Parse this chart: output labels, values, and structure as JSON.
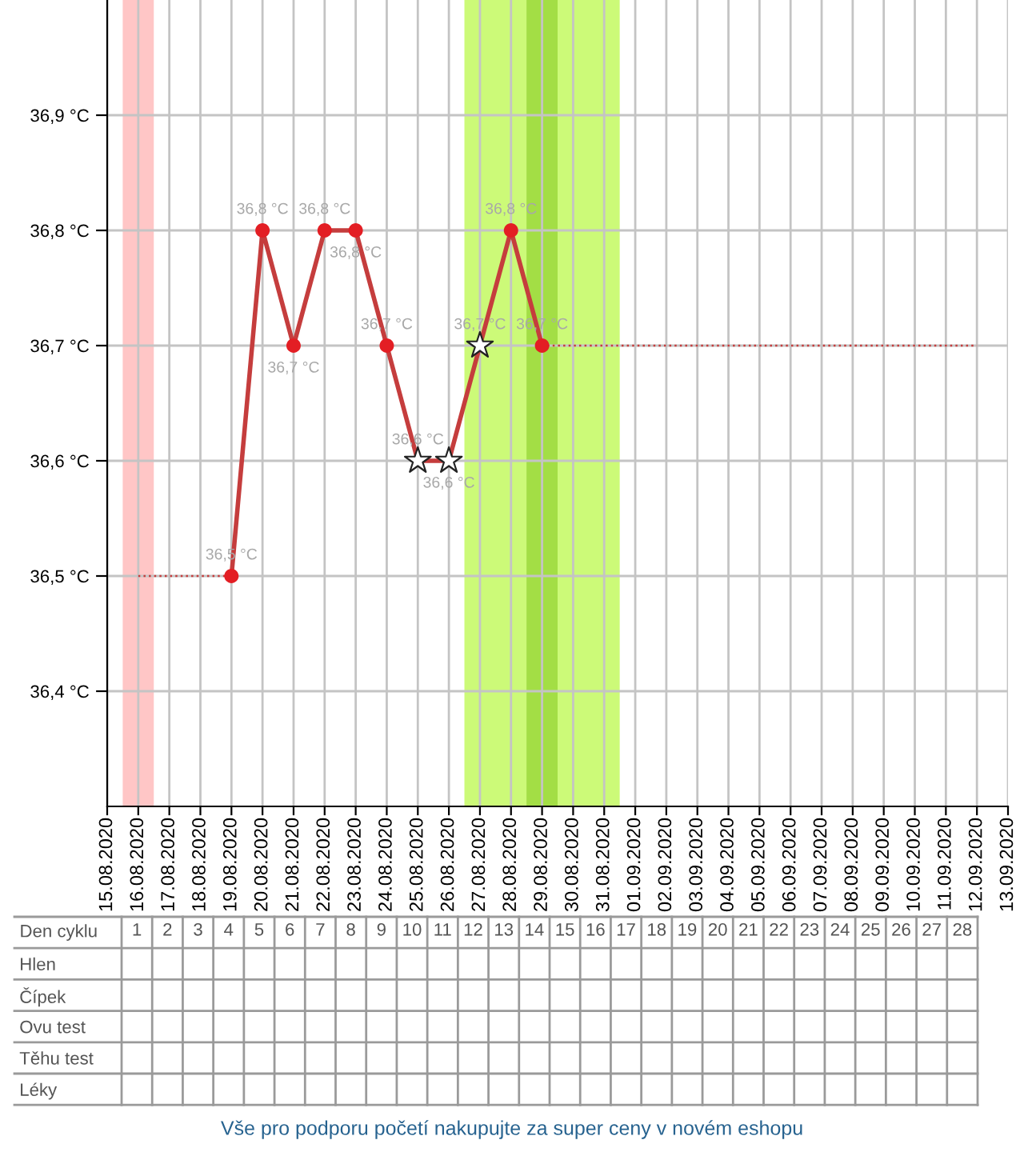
{
  "chart_data": [
    {
      "type": "line",
      "x": [
        "2020-08-19",
        "2020-08-20",
        "2020-08-21",
        "2020-08-22",
        "2020-08-23",
        "2020-08-24",
        "2020-08-25",
        "2020-08-26",
        "2020-08-27",
        "2020-08-28",
        "2020-08-29"
      ],
      "series": [
        {
          "type": "line",
          "color": "#c53d3d",
          "marker": "none",
          "line_style": "solid",
          "values": [
            36.5,
            36.8,
            36.7,
            36.8,
            36.8,
            36.7,
            36.6,
            36.6,
            36.7,
            36.8,
            36.7
          ],
          "value_labels": [
            "36,5 °C",
            "36,8 °C",
            "36,7 °C",
            "36,8 °C",
            "36,8 °C",
            "36,7 °C",
            "36,6 °C",
            "36,6 °C",
            "36,7 °C",
            "36,8 °C",
            "36,7 °C"
          ]
        },
        {
          "type": "scatter",
          "color": "#e31e24",
          "marker": "circle",
          "values": [
            36.5,
            36.8,
            36.7,
            36.8,
            36.8,
            36.7,
            null,
            null,
            null,
            36.8,
            36.7
          ]
        },
        {
          "type": "scatter",
          "color": "#ffffff",
          "marker": "star",
          "values": [
            null,
            null,
            null,
            null,
            null,
            null,
            36.6,
            36.6,
            36.7,
            null,
            null
          ]
        },
        {
          "type": "line",
          "color": "#c53d3d",
          "marker": "none",
          "line_style": "dotted",
          "x": [
            "2020-08-16",
            "2020-08-19"
          ],
          "values": [
            36.5,
            36.5
          ]
        },
        {
          "type": "line",
          "color": "#c53d3d",
          "marker": "none",
          "line_style": "dotted",
          "x": [
            "2020-08-29",
            "2020-09-12"
          ],
          "values": [
            36.7,
            36.7
          ]
        }
      ],
      "bands": [
        {
          "axis": "x",
          "from": "2020-08-15T12:00",
          "to": "2020-08-16T12:00",
          "color": "#ffc6c6"
        },
        {
          "axis": "x",
          "from": "2020-08-26T12:00",
          "to": "2020-08-31T12:00",
          "color": "#ccfa78"
        },
        {
          "axis": "x",
          "from": "2020-08-28T12:00",
          "to": "2020-08-29T12:00",
          "color": "#a3de45"
        }
      ],
      "xlim": [
        "2020-08-15",
        "2020-09-13"
      ],
      "xticks": [
        {
          "value": "2020-08-15",
          "label": "15.08.2020"
        },
        {
          "value": "2020-08-16",
          "label": "16.08.2020"
        },
        {
          "value": "2020-08-17",
          "label": "17.08.2020"
        },
        {
          "value": "2020-08-18",
          "label": "18.08.2020"
        },
        {
          "value": "2020-08-19",
          "label": "19.08.2020"
        },
        {
          "value": "2020-08-20",
          "label": "20.08.2020"
        },
        {
          "value": "2020-08-21",
          "label": "21.08.2020"
        },
        {
          "value": "2020-08-22",
          "label": "22.08.2020"
        },
        {
          "value": "2020-08-23",
          "label": "23.08.2020"
        },
        {
          "value": "2020-08-24",
          "label": "24.08.2020"
        },
        {
          "value": "2020-08-25",
          "label": "25.08.2020"
        },
        {
          "value": "2020-08-26",
          "label": "26.08.2020"
        },
        {
          "value": "2020-08-27",
          "label": "27.08.2020"
        },
        {
          "value": "2020-08-28",
          "label": "28.08.2020"
        },
        {
          "value": "2020-08-29",
          "label": "29.08.2020"
        },
        {
          "value": "2020-08-30",
          "label": "30.08.2020"
        },
        {
          "value": "2020-08-31",
          "label": "31.08.2020"
        },
        {
          "value": "2020-09-01",
          "label": "01.09.2020"
        },
        {
          "value": "2020-09-02",
          "label": "02.09.2020"
        },
        {
          "value": "2020-09-03",
          "label": "03.09.2020"
        },
        {
          "value": "2020-09-04",
          "label": "04.09.2020"
        },
        {
          "value": "2020-09-05",
          "label": "05.09.2020"
        },
        {
          "value": "2020-09-06",
          "label": "06.09.2020"
        },
        {
          "value": "2020-09-07",
          "label": "07.09.2020"
        },
        {
          "value": "2020-09-08",
          "label": "08.09.2020"
        },
        {
          "value": "2020-09-09",
          "label": "09.09.2020"
        },
        {
          "value": "2020-09-10",
          "label": "10.09.2020"
        },
        {
          "value": "2020-09-11",
          "label": "11.09.2020"
        },
        {
          "value": "2020-09-12",
          "label": "12.09.2020"
        },
        {
          "value": "2020-09-13",
          "label": "13.09.2020"
        }
      ],
      "ylim": [
        36.3,
        37.0
      ],
      "yticks": [
        {
          "value": 36.4,
          "label": "36,4 °C"
        },
        {
          "value": 36.5,
          "label": "36,5 °C"
        },
        {
          "value": 36.6,
          "label": "36,6 °C"
        },
        {
          "value": 36.7,
          "label": "36,7 °C"
        },
        {
          "value": 36.8,
          "label": "36,8 °C"
        },
        {
          "value": 36.9,
          "label": "36,9 °C"
        }
      ],
      "grid": true
    },
    {
      "type": "heatmap",
      "xlabel": "Den cyklu",
      "categories": [
        "1",
        "2",
        "3",
        "4",
        "5",
        "6",
        "7",
        "8",
        "9",
        "10",
        "11",
        "12",
        "13",
        "14",
        "15",
        "16",
        "17",
        "18",
        "19",
        "20",
        "21",
        "22",
        "23",
        "24",
        "25",
        "26",
        "27",
        "28"
      ],
      "y_categories": [
        "Hlen",
        "Čípek",
        "Ovu test",
        "Těhu test",
        "Léky"
      ],
      "cells": [
        [
          null,
          null,
          null,
          null,
          null,
          null,
          null,
          null,
          null,
          null,
          null,
          null,
          null,
          null,
          null,
          null,
          null,
          null,
          null,
          null,
          null,
          null,
          null,
          null,
          null,
          null,
          null,
          null
        ],
        [
          null,
          null,
          null,
          null,
          null,
          null,
          null,
          null,
          null,
          null,
          null,
          null,
          null,
          null,
          null,
          null,
          null,
          null,
          null,
          null,
          null,
          null,
          null,
          null,
          null,
          null,
          null,
          null
        ],
        [
          null,
          null,
          null,
          null,
          null,
          null,
          null,
          null,
          null,
          null,
          null,
          null,
          null,
          null,
          null,
          null,
          null,
          null,
          null,
          null,
          null,
          null,
          null,
          null,
          null,
          null,
          null,
          null
        ],
        [
          null,
          null,
          null,
          null,
          null,
          null,
          null,
          null,
          null,
          null,
          null,
          null,
          null,
          null,
          null,
          null,
          null,
          null,
          null,
          null,
          null,
          null,
          null,
          null,
          null,
          null,
          null,
          null
        ],
        [
          null,
          null,
          null,
          null,
          null,
          null,
          null,
          null,
          null,
          null,
          null,
          null,
          null,
          null,
          null,
          null,
          null,
          null,
          null,
          null,
          null,
          null,
          null,
          null,
          null,
          null,
          null,
          null
        ]
      ],
      "annotations": [
        "Vše pro podporu početí nakupujte za super ceny v novém eshopu"
      ]
    }
  ]
}
